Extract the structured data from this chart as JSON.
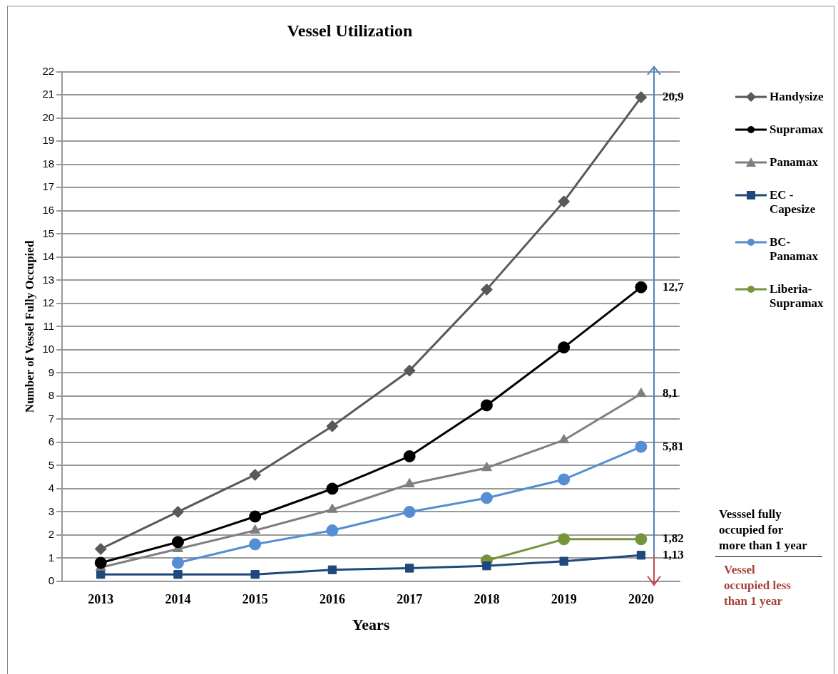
{
  "chart_data": {
    "type": "line",
    "title": "Vessel Utilization",
    "xlabel": "Years",
    "ylabel": "Number of Vessel Fully Occupied",
    "categories": [
      "2013",
      "2014",
      "2015",
      "2016",
      "2017",
      "2018",
      "2019",
      "2020"
    ],
    "ylim": [
      0,
      22
    ],
    "yticks": [
      0,
      1,
      2,
      3,
      4,
      5,
      6,
      7,
      8,
      9,
      10,
      11,
      12,
      13,
      14,
      15,
      16,
      17,
      18,
      19,
      20,
      21,
      22
    ],
    "grid": "y",
    "legend": "right",
    "line_style": "solid",
    "series": [
      {
        "name": "Handysize",
        "color": "#595959",
        "marker": "diamond",
        "values": [
          1.4,
          3.0,
          4.6,
          6.7,
          9.1,
          12.6,
          16.4,
          20.9
        ],
        "value_labels": [
          null,
          null,
          null,
          null,
          null,
          null,
          null,
          "20,9"
        ]
      },
      {
        "name": "Supramax",
        "color": "#000000",
        "marker": "circle",
        "values": [
          0.8,
          1.7,
          2.8,
          4.0,
          5.4,
          7.6,
          10.1,
          12.7
        ],
        "value_labels": [
          null,
          null,
          null,
          null,
          null,
          null,
          null,
          "12,7"
        ]
      },
      {
        "name": "Panamax",
        "color": "#7f7f7f",
        "marker": "triangle",
        "values": [
          0.6,
          1.4,
          2.2,
          3.1,
          4.2,
          4.9,
          6.1,
          8.1
        ],
        "value_labels": [
          null,
          null,
          null,
          null,
          null,
          null,
          null,
          "8,1"
        ]
      },
      {
        "name": "EC - Capesize",
        "color": "#1f497d",
        "marker": "square",
        "values": [
          0.3,
          0.3,
          0.3,
          0.5,
          0.57,
          0.67,
          0.87,
          1.13
        ],
        "value_labels": [
          null,
          null,
          null,
          null,
          null,
          null,
          null,
          "1,13"
        ]
      },
      {
        "name": "BC-Panamax",
        "color": "#558ed5",
        "marker": "circle",
        "values": [
          null,
          0.8,
          1.6,
          2.2,
          3.0,
          3.6,
          4.4,
          5.81
        ],
        "value_labels": [
          null,
          null,
          null,
          null,
          null,
          null,
          null,
          "5,81"
        ]
      },
      {
        "name": "Liberia-Supramax",
        "color": "#77933c",
        "marker": "circle",
        "values": [
          null,
          null,
          null,
          null,
          null,
          0.9,
          1.82,
          1.82
        ],
        "value_labels": [
          null,
          null,
          null,
          null,
          null,
          null,
          null,
          "1,82"
        ]
      }
    ],
    "annotations": [
      "Vesssel fully occupied for more than 1 year",
      "Vessel occupied less than 1 year"
    ]
  }
}
